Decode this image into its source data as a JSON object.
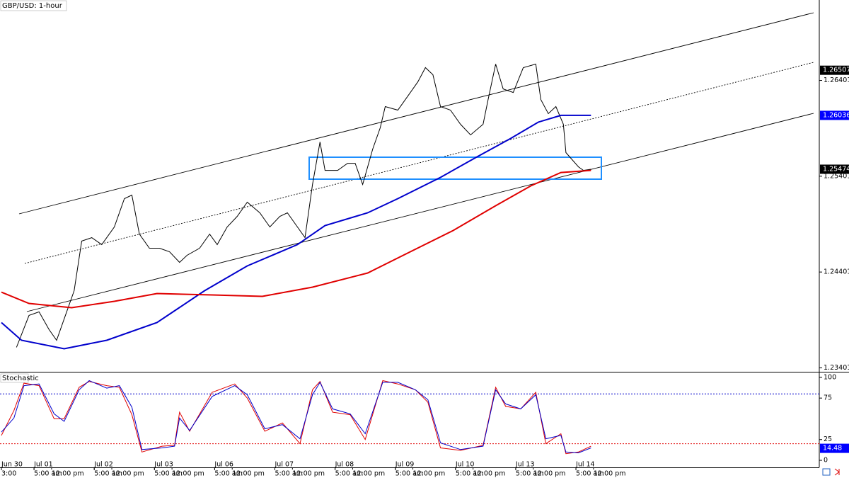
{
  "chart_data": [
    {
      "type": "line",
      "title": "GBP/USD: 1-hour",
      "xlim": [
        0,
        326
      ],
      "ylim": [
        1.2336,
        1.2724
      ],
      "yticks": [
        1.23401,
        1.24401,
        1.25401,
        1.26401
      ],
      "xticks": [
        {
          "value": 0,
          "label": "Jun 30"
        },
        {
          "value": 13,
          "label": "Jul 01"
        },
        {
          "value": 37,
          "label": "Jul 02"
        },
        {
          "value": 61,
          "label": "Jul 03"
        },
        {
          "value": 85,
          "label": "Jul 06"
        },
        {
          "value": 109,
          "label": "Jul 07"
        },
        {
          "value": 133,
          "label": "Jul 08"
        },
        {
          "value": 157,
          "label": "Jul 09"
        },
        {
          "value": 181,
          "label": "Jul 10"
        },
        {
          "value": 205,
          "label": "Jul 13"
        },
        {
          "value": 229,
          "label": "Jul 14"
        }
      ],
      "xticks_minor": [
        {
          "value": 0,
          "label": "3:00"
        },
        {
          "value": 13,
          "label": "5:00 am"
        },
        {
          "value": 20,
          "label": "12:00 pm"
        },
        {
          "value": 37,
          "label": "5:00 am"
        },
        {
          "value": 44,
          "label": "12:00 pm"
        },
        {
          "value": 61,
          "label": "5:00 am"
        },
        {
          "value": 68,
          "label": "12:00 pm"
        },
        {
          "value": 85,
          "label": "5:00 am"
        },
        {
          "value": 92,
          "label": "12:00 pm"
        },
        {
          "value": 109,
          "label": "5:00 am"
        },
        {
          "value": 116,
          "label": "12:00 pm"
        },
        {
          "value": 133,
          "label": "5:00 am"
        },
        {
          "value": 140,
          "label": "12:00 pm"
        },
        {
          "value": 157,
          "label": "5:00 am"
        },
        {
          "value": 164,
          "label": "12:00 pm"
        },
        {
          "value": 181,
          "label": "5:00 am"
        },
        {
          "value": 188,
          "label": "12:00 pm"
        },
        {
          "value": 205,
          "label": "5:00 am"
        },
        {
          "value": 212,
          "label": "12:00 pm"
        },
        {
          "value": 229,
          "label": "5:00 am"
        },
        {
          "value": 236,
          "label": "12:00 pm"
        }
      ],
      "series": [
        {
          "color": "#000000",
          "width": 1,
          "x": [
            6,
            11,
            15,
            19,
            22,
            26,
            29,
            32,
            36,
            40,
            45,
            49,
            52,
            55,
            59,
            63,
            67,
            71,
            74,
            79,
            83,
            86,
            90,
            94,
            98,
            103,
            107,
            111,
            114,
            118,
            121,
            124,
            127,
            129,
            134,
            138,
            141,
            144,
            148,
            151,
            153,
            158,
            162,
            166,
            169,
            172,
            175,
            179,
            183,
            187,
            192,
            194,
            197,
            200,
            204,
            208,
            213,
            215,
            218,
            221,
            224,
            225,
            230,
            232,
            235
          ],
          "values": [
            1.23615,
            1.23948,
            1.23985,
            1.238,
            1.23689,
            1.23985,
            1.24206,
            1.24724,
            1.2476,
            1.24687,
            1.24871,
            1.25167,
            1.25204,
            1.24797,
            1.2465,
            1.2465,
            1.24613,
            1.24502,
            1.24576,
            1.2465,
            1.24797,
            1.24687,
            1.24871,
            1.24982,
            1.2513,
            1.25019,
            1.24871,
            1.24982,
            1.25019,
            1.24871,
            1.2476,
            1.25315,
            1.25758,
            1.25462,
            1.25462,
            1.25536,
            1.25536,
            1.25315,
            1.25684,
            1.25906,
            1.26128,
            1.26091,
            1.26238,
            1.26386,
            1.26534,
            1.2646,
            1.26128,
            1.26091,
            1.25943,
            1.25832,
            1.25943,
            1.26201,
            1.26571,
            1.26312,
            1.26275,
            1.26534,
            1.26571,
            1.26201,
            1.26054,
            1.26128,
            1.25943,
            1.25647,
            1.25499,
            1.25462,
            1.25474
          ]
        },
        {
          "color": "#0000cc",
          "width": 2,
          "x": [
            0,
            8,
            25,
            42,
            62,
            81,
            98,
            118,
            129,
            146,
            158,
            175,
            189,
            203,
            214,
            223,
            235
          ],
          "values": [
            1.23874,
            1.23689,
            1.236,
            1.23689,
            1.23874,
            1.24206,
            1.24465,
            1.24687,
            1.24886,
            1.25019,
            1.25167,
            1.25389,
            1.25595,
            1.25795,
            1.25965,
            1.26036,
            1.26036
          ]
        },
        {
          "color": "#e00000",
          "width": 2,
          "x": [
            0,
            11,
            28,
            45,
            62,
            84,
            104,
            124,
            146,
            163,
            180,
            197,
            211,
            223,
            235
          ],
          "values": [
            1.24191,
            1.24073,
            1.24029,
            1.24095,
            1.24177,
            1.24162,
            1.24147,
            1.24243,
            1.24391,
            1.24613,
            1.24834,
            1.25093,
            1.253,
            1.2544,
            1.25462
          ]
        }
      ],
      "price_tags": [
        {
          "value": 1.26507,
          "color": "#000000"
        },
        {
          "value": 1.26036,
          "color": "#0000ff"
        },
        {
          "value": 1.25474,
          "color": "#000000"
        }
      ]
    },
    {
      "type": "line",
      "title": "Stochastic",
      "xlim": [
        0,
        326
      ],
      "ylim": [
        -8.5,
        105
      ],
      "yticks": [
        0,
        25,
        75,
        100
      ],
      "levels": [
        {
          "value": 80,
          "color": "#0000cc"
        },
        {
          "value": 20,
          "color": "#e00000"
        }
      ],
      "series": [
        {
          "color": "#e00000",
          "width": 1,
          "x": [
            0,
            5,
            9,
            15,
            21,
            25,
            31,
            35,
            42,
            47,
            52,
            56,
            64,
            69,
            71,
            75,
            84,
            93,
            98,
            105,
            112,
            119,
            124,
            127,
            132,
            139,
            145,
            152,
            158,
            165,
            170,
            175,
            183,
            192,
            197,
            201,
            207,
            213,
            217,
            223,
            225,
            230,
            235
          ],
          "values": [
            30,
            60,
            93,
            90,
            50,
            50,
            88,
            95,
            90,
            88,
            55,
            10,
            17,
            18,
            58,
            35,
            82,
            92,
            75,
            35,
            45,
            20,
            85,
            95,
            58,
            55,
            25,
            96,
            92,
            85,
            70,
            15,
            12,
            18,
            88,
            65,
            62,
            82,
            20,
            32,
            8,
            10,
            17
          ]
        },
        {
          "color": "#0000cc",
          "width": 1,
          "x": [
            0,
            5,
            9,
            15,
            21,
            25,
            31,
            35,
            42,
            47,
            52,
            56,
            64,
            69,
            71,
            75,
            84,
            93,
            98,
            105,
            112,
            119,
            124,
            127,
            132,
            139,
            145,
            152,
            158,
            165,
            170,
            175,
            183,
            192,
            197,
            201,
            207,
            213,
            217,
            223,
            225,
            230,
            235
          ],
          "values": [
            34,
            51,
            90,
            92,
            56,
            47,
            85,
            96,
            87,
            90,
            64,
            13,
            15,
            17,
            51,
            36,
            77,
            90,
            79,
            38,
            43,
            26,
            79,
            94,
            62,
            56,
            32,
            94,
            94,
            85,
            73,
            21,
            13,
            17,
            85,
            68,
            62,
            79,
            26,
            30,
            10,
            9,
            15
          ]
        }
      ],
      "price_tags": [
        {
          "value": 14.48,
          "color": "#0000ff"
        }
      ]
    }
  ]
}
